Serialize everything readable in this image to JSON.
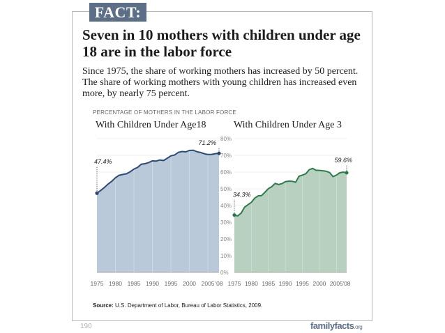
{
  "fact_label": "FACT:",
  "headline": "Seven in 10 mothers with children under age 18 are in the labor force",
  "summary": "Since 1975, the share of working mothers has increased by 50 percent. The share of working mothers with young children has increased even more, by nearly 75 percent.",
  "chart_label": "PERCENTAGE OF MOTHERS IN THE LABOR FORCE",
  "source_label": "Source:",
  "source_text": "U.S. Department of Labor, Bureau of Labor Statistics, 2009.",
  "page_number": "190",
  "brand": {
    "name": "familyfacts",
    "suffix": ".org"
  },
  "colors": {
    "accent": "#5d6f86",
    "left_fill": "#b9c9da",
    "left_line": "#2d4a72",
    "right_fill": "#b7d0bf",
    "right_line": "#2f7a4c"
  },
  "chart_data": [
    {
      "type": "area",
      "title": "With Children Under Age18",
      "x": [
        1975,
        1976,
        1977,
        1978,
        1979,
        1980,
        1981,
        1982,
        1983,
        1984,
        1985,
        1986,
        1987,
        1988,
        1989,
        1990,
        1991,
        1992,
        1993,
        1994,
        1995,
        1996,
        1997,
        1998,
        1999,
        2000,
        2001,
        2002,
        2003,
        2004,
        2005,
        2006,
        2007,
        2008
      ],
      "values": [
        47.4,
        49.0,
        50.8,
        52.8,
        54.5,
        56.6,
        58.1,
        58.6,
        59.0,
        60.2,
        61.8,
        62.8,
        64.7,
        65.0,
        65.7,
        66.7,
        66.6,
        67.2,
        66.9,
        68.3,
        69.7,
        70.2,
        71.8,
        72.3,
        72.1,
        72.9,
        73.1,
        72.2,
        71.7,
        71.0,
        70.5,
        70.6,
        71.0,
        71.2
      ],
      "tick_labels": [
        "1975",
        "1980",
        "1985",
        "1990",
        "1995",
        "2000",
        "2005",
        "'08"
      ],
      "annotations": [
        {
          "x": 1975,
          "y": 47.4,
          "text": "47.4%"
        },
        {
          "x": 2008,
          "y": 71.2,
          "text": "71.2%"
        }
      ],
      "ylim": [
        0,
        80
      ]
    },
    {
      "type": "area",
      "title": "With Children Under Age 3",
      "x": [
        1975,
        1976,
        1977,
        1978,
        1979,
        1980,
        1981,
        1982,
        1983,
        1984,
        1985,
        1986,
        1987,
        1988,
        1989,
        1990,
        1991,
        1992,
        1993,
        1994,
        1995,
        1996,
        1997,
        1998,
        1999,
        2000,
        2001,
        2002,
        2003,
        2004,
        2005,
        2006,
        2007,
        2008
      ],
      "values": [
        34.3,
        33.8,
        35.5,
        39.0,
        40.5,
        41.9,
        44.5,
        45.8,
        45.9,
        48.0,
        50.1,
        51.3,
        53.2,
        52.6,
        53.1,
        54.3,
        54.6,
        54.5,
        53.9,
        57.5,
        58.2,
        59.0,
        61.4,
        62.2,
        61.1,
        61.0,
        60.8,
        60.5,
        59.7,
        57.3,
        58.2,
        59.6,
        60.0,
        59.6
      ],
      "tick_labels": [
        "1975",
        "1980",
        "1985",
        "1990",
        "1995",
        "2000",
        "2005",
        "'08"
      ],
      "annotations": [
        {
          "x": 1975,
          "y": 34.3,
          "text": "34.3%"
        },
        {
          "x": 2008,
          "y": 59.6,
          "text": "59.6%"
        }
      ],
      "ylim": [
        0,
        80
      ]
    }
  ],
  "y_ticks": [
    "0%",
    "10%",
    "20%",
    "30%",
    "40%",
    "50%",
    "60%",
    "70%",
    "80%"
  ]
}
